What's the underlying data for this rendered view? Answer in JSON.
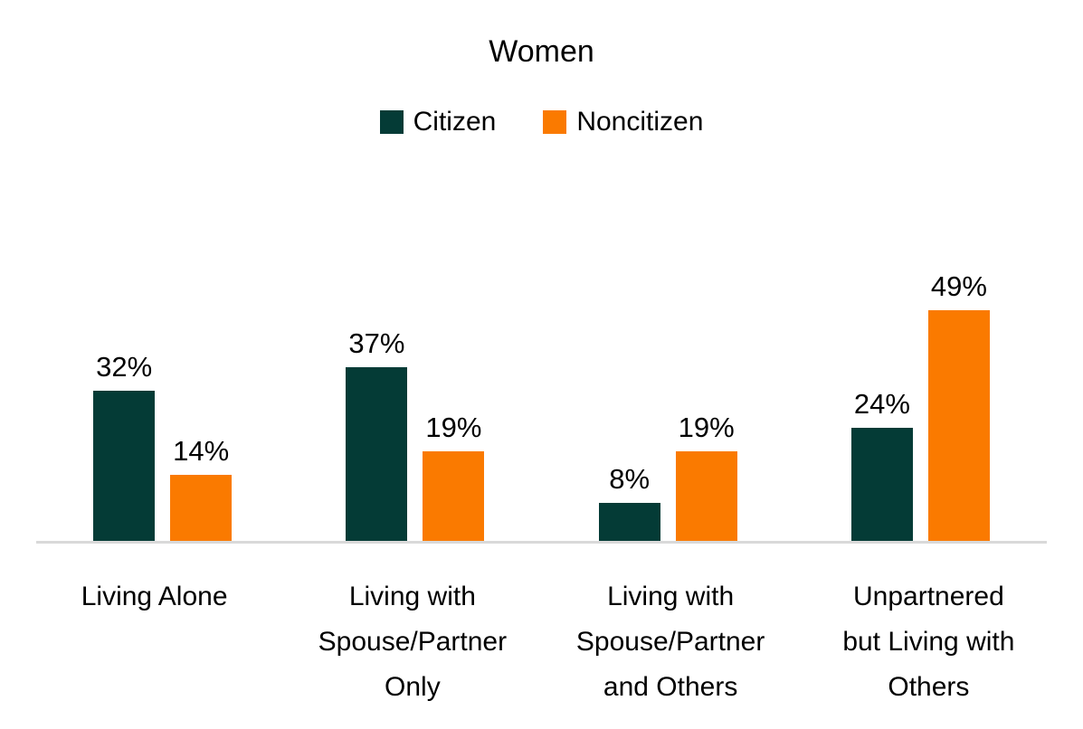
{
  "chart_data": {
    "type": "bar",
    "title": "Women",
    "categories": [
      "Living Alone",
      "Living with Spouse/Partner Only",
      "Living with Spouse/Partner and Others",
      "Unpartnered but Living with Others"
    ],
    "categories_wrapped": [
      "Living Alone",
      "Living with\nSpouse/Partner\nOnly",
      "Living with\nSpouse/Partner\nand Others",
      "Unpartnered\nbut Living with\nOthers"
    ],
    "series": [
      {
        "name": "Citizen",
        "color": "#043b36",
        "values": [
          32,
          37,
          8,
          24
        ]
      },
      {
        "name": "Noncitizen",
        "color": "#fa7a00",
        "values": [
          14,
          19,
          19,
          49
        ]
      }
    ],
    "value_labels": [
      [
        "32%",
        "37%",
        "8%",
        "24%"
      ],
      [
        "14%",
        "19%",
        "19%",
        "49%"
      ]
    ],
    "ylabel": "",
    "xlabel": "",
    "ylim": [
      0,
      55
    ],
    "grid": false,
    "legend_position": "top",
    "axis_line_color": "#d9d9d9",
    "text_color": "#000000"
  }
}
